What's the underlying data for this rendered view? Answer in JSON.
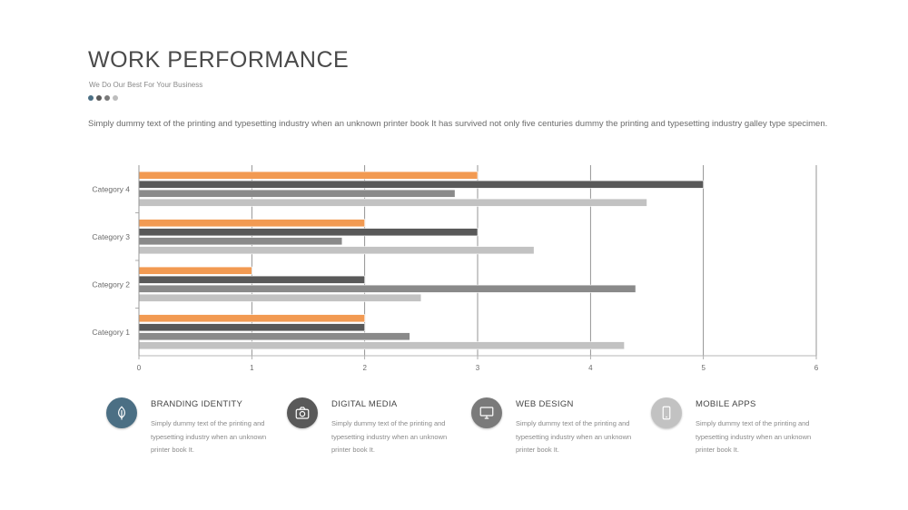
{
  "slide": {
    "title": "WORK PERFORMANCE",
    "subtitle": "We Do Our Best For Your Business",
    "intro": "Simply dummy text of the printing and typesetting industry when an unknown printer book It has survived not only five centuries dummy  the printing and typesetting industry galley type specimen.",
    "dot_colors": [
      "#4b6f84",
      "#5a5a5a",
      "#7a7a7a",
      "#bdbdbd"
    ]
  },
  "chart_data": {
    "type": "bar",
    "orientation": "horizontal",
    "categories": [
      "Category 4",
      "Category 3",
      "Category 2",
      "Category 1"
    ],
    "x_ticks": [
      "0",
      "1",
      "2",
      "3",
      "4",
      "5",
      "6"
    ],
    "xlim": [
      0,
      6
    ],
    "grid": true,
    "series": [
      {
        "color": "#f29a52",
        "values": [
          3,
          2,
          1,
          2
        ]
      },
      {
        "color": "#595959",
        "values": [
          5,
          3,
          2,
          2
        ]
      },
      {
        "color": "#8a8a8a",
        "values": [
          2.8,
          1.8,
          4.4,
          2.4
        ]
      },
      {
        "color": "#c2c2c2",
        "values": [
          4.5,
          3.5,
          2.5,
          4.3
        ]
      }
    ]
  },
  "features": [
    {
      "title": "BRANDING  IDENTITY",
      "text": "Simply dummy text of the printing and typesetting  industry when an unknown printer book It.",
      "icon": "leaf-icon",
      "color": "#4b6f84"
    },
    {
      "title": "DIGITAL MEDIA",
      "text": "Simply dummy text of the printing and typesetting  industry when an unknown printer book It.",
      "icon": "camera-icon",
      "color": "#595959"
    },
    {
      "title": "WEB DESIGN",
      "text": "Simply dummy text of the printing and typesetting  industry when an unknown printer book It.",
      "icon": "monitor-icon",
      "color": "#7a7a7a"
    },
    {
      "title": "MOBILE APPS",
      "text": "Simply dummy text of the printing and typesetting  industry when an unknown printer book It.",
      "icon": "mobile-icon",
      "color": "#c2c2c2"
    }
  ]
}
